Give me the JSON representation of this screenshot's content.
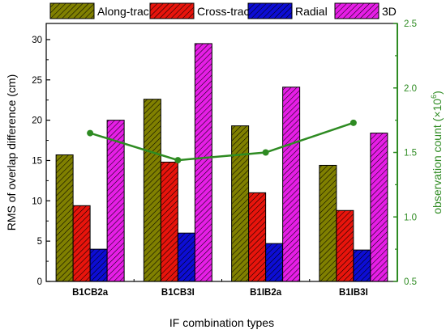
{
  "chart_data": {
    "type": "bar",
    "categories": [
      "B1CB2a",
      "B1CB3I",
      "B1IB2a",
      "B1IB3I"
    ],
    "series": [
      {
        "name": "Along-track",
        "values": [
          15.7,
          22.6,
          19.3,
          14.4
        ],
        "color": "#808000",
        "pattern": "hatch"
      },
      {
        "name": "Cross-track",
        "values": [
          9.4,
          14.8,
          11.0,
          8.8
        ],
        "color": "#e8140c",
        "pattern": "hatch"
      },
      {
        "name": "Radial",
        "values": [
          4.0,
          6.0,
          4.7,
          3.9
        ],
        "color": "#0d0dd4",
        "pattern": "hatch"
      },
      {
        "name": "3D",
        "values": [
          20.0,
          29.5,
          24.1,
          18.4
        ],
        "color": "#e61ee6",
        "pattern": "hatch"
      }
    ],
    "line_series": {
      "values": [
        1.65,
        1.44,
        1.5,
        1.73
      ],
      "color": "#2e8b22",
      "axis": "right"
    },
    "xlabel": "IF combination types",
    "ylabel": "RMS of overlap difference (cm)",
    "ylabel_right": "observation count (×10",
    "ylabel_right_exp": "6",
    "ylabel_right_close": ")",
    "ylim": [
      0,
      32
    ],
    "yticks": [
      "0",
      "5",
      "10",
      "15",
      "20",
      "25",
      "30"
    ],
    "ylim_right": [
      0.5,
      2.5
    ],
    "yticks_right": [
      "0.5",
      "1.0",
      "1.5",
      "2.0",
      "2.5"
    ],
    "right_axis_color": "#2e8b22",
    "legend_position": "top"
  }
}
